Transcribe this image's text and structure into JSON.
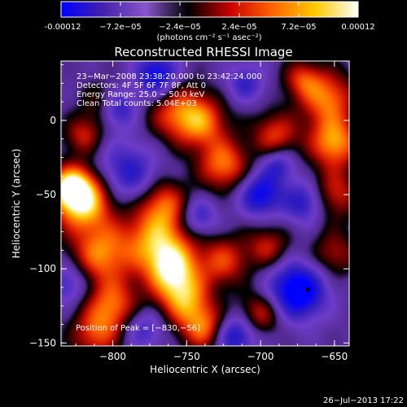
{
  "colorbar": {
    "ticks": [
      "-0.00012",
      "−7.2e−05",
      "−2.4e−05",
      "2.4e−05",
      "7.2e−05",
      "0.00012"
    ],
    "unit_label": "(photons cm⁻² s⁻¹ asec⁻²)",
    "range": [
      -0.00012,
      0.00012
    ],
    "colors": [
      "#0000ff",
      "#4422aa",
      "#8855cc",
      "#000000",
      "#cc0000",
      "#ff6600",
      "#ffcc00",
      "#ffffff"
    ]
  },
  "chart_data": {
    "type": "heatmap",
    "title": "Reconstructed RHESSI Image",
    "xlabel": "Heliocentric X (arcsec)",
    "ylabel": "Heliocentric Y (arcsec)",
    "xlim": [
      -835,
      -640
    ],
    "ylim": [
      -152,
      40
    ],
    "xticks": [
      -800,
      -750,
      -700,
      -650
    ],
    "yticks": [
      0,
      -50,
      -100,
      -150
    ],
    "xtick_labels": [
      "−800",
      "−750",
      "−700",
      "−650"
    ],
    "ytick_labels": [
      "0",
      "−50",
      "−100",
      "−150"
    ],
    "annotations": [
      "23−Mar−2008 23:38:20.000 to 23:42:24.000",
      "Detectors: 4F 5F 6F 7F 8F, Att 0",
      "Energy Range: 25.0 − 50.0 keV",
      "Clean     Total counts: 5.04E+03"
    ],
    "peak_label": "Position of Peak = [−830,−56]",
    "marker": {
      "x": -668,
      "y": -114
    },
    "sources": [
      {
        "x": -820,
        "y": -55,
        "r": 14,
        "v": 1.0
      },
      {
        "x": -828,
        "y": -45,
        "r": 10,
        "v": 0.9
      },
      {
        "x": -808,
        "y": -90,
        "r": 14,
        "v": 0.75
      },
      {
        "x": -800,
        "y": -125,
        "r": 13,
        "v": 0.7
      },
      {
        "x": -812,
        "y": -145,
        "r": 12,
        "v": 0.55
      },
      {
        "x": -770,
        "y": -80,
        "r": 16,
        "v": 0.85
      },
      {
        "x": -760,
        "y": -100,
        "r": 12,
        "v": 0.85
      },
      {
        "x": -765,
        "y": -55,
        "r": 11,
        "v": 0.55
      },
      {
        "x": -752,
        "y": -120,
        "r": 12,
        "v": 0.8
      },
      {
        "x": -738,
        "y": -140,
        "r": 11,
        "v": 0.75
      },
      {
        "x": -755,
        "y": 5,
        "r": 14,
        "v": 0.7
      },
      {
        "x": -738,
        "y": -2,
        "r": 12,
        "v": 0.55
      },
      {
        "x": -805,
        "y": 10,
        "r": 10,
        "v": 0.55
      },
      {
        "x": -820,
        "y": -10,
        "r": 9,
        "v": 0.5
      },
      {
        "x": -725,
        "y": -30,
        "r": 12,
        "v": 0.75
      },
      {
        "x": -725,
        "y": -95,
        "r": 12,
        "v": 0.6
      },
      {
        "x": -690,
        "y": -10,
        "r": 11,
        "v": 0.6
      },
      {
        "x": -695,
        "y": -85,
        "r": 10,
        "v": 0.5
      },
      {
        "x": -700,
        "y": -130,
        "r": 10,
        "v": 0.55
      },
      {
        "x": -655,
        "y": 15,
        "r": 13,
        "v": 0.75
      },
      {
        "x": -650,
        "y": -15,
        "r": 12,
        "v": 0.85
      },
      {
        "x": -650,
        "y": -50,
        "r": 12,
        "v": 0.55
      },
      {
        "x": -650,
        "y": -90,
        "r": 11,
        "v": 0.45
      },
      {
        "x": -672,
        "y": 28,
        "r": 9,
        "v": 0.5
      },
      {
        "x": -790,
        "y": -35,
        "r": 14,
        "v": -0.55
      },
      {
        "x": -798,
        "y": 8,
        "r": 9,
        "v": -0.8
      },
      {
        "x": -770,
        "y": 30,
        "r": 10,
        "v": -0.8
      },
      {
        "x": -675,
        "y": -115,
        "r": 13,
        "v": -1.0
      },
      {
        "x": -700,
        "y": -50,
        "r": 10,
        "v": -0.75
      },
      {
        "x": -718,
        "y": -145,
        "r": 10,
        "v": -0.7
      },
      {
        "x": -670,
        "y": -55,
        "r": 10,
        "v": -0.6
      },
      {
        "x": -780,
        "y": -140,
        "r": 10,
        "v": -0.45
      },
      {
        "x": -830,
        "y": -110,
        "r": 10,
        "v": -0.45
      },
      {
        "x": -742,
        "y": -65,
        "r": 9,
        "v": -0.5
      },
      {
        "x": -710,
        "y": 25,
        "r": 9,
        "v": -0.45
      },
      {
        "x": -688,
        "y": -30,
        "r": 8,
        "v": -0.5
      }
    ]
  },
  "footer": {
    "timestamp": "26−Jul−2013 17:22"
  }
}
